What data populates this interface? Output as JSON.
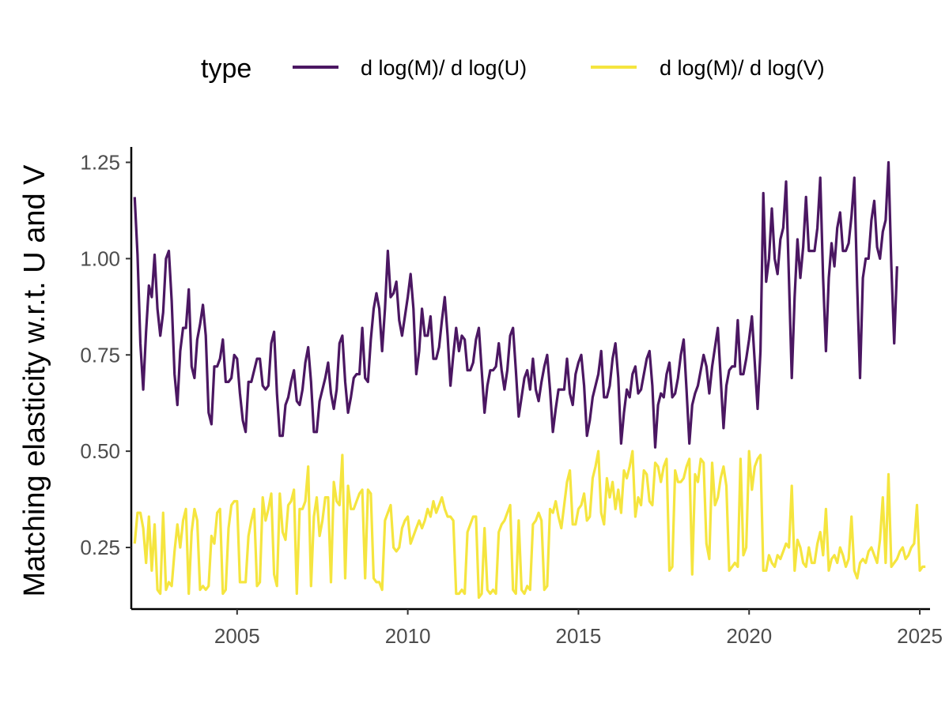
{
  "chart_data": {
    "type": "line",
    "title": "",
    "xlabel": "",
    "ylabel": "Matching elasticity w.r.t. U and V",
    "xlim": [
      2001.9,
      2025.3
    ],
    "ylim": [
      0.09,
      1.29
    ],
    "x_ticks": [
      2005,
      2010,
      2015,
      2020,
      2025
    ],
    "x_tick_labels": [
      "2005",
      "2010",
      "2015",
      "2020",
      "2025"
    ],
    "y_ticks": [
      0.25,
      0.5,
      0.75,
      1.0,
      1.25
    ],
    "y_tick_labels": [
      "0.25",
      "0.50",
      "0.75",
      "1.00",
      "1.25"
    ],
    "grid": false,
    "legend": {
      "title": "type",
      "position": "top",
      "entries": [
        "d log(M)/ d log(U)",
        "d log(M)/ d log(V)"
      ]
    },
    "x_start": 2002.0,
    "x_step": 0.0833333,
    "series": [
      {
        "name": "d log(M)/ d log(U)",
        "color": "#4b1762",
        "values": [
          1.16,
          1.01,
          0.78,
          0.66,
          0.81,
          0.93,
          0.9,
          1.01,
          0.87,
          0.8,
          0.86,
          1.0,
          1.02,
          0.89,
          0.7,
          0.62,
          0.76,
          0.82,
          0.82,
          0.92,
          0.72,
          0.69,
          0.79,
          0.83,
          0.88,
          0.8,
          0.6,
          0.57,
          0.72,
          0.72,
          0.74,
          0.79,
          0.68,
          0.68,
          0.69,
          0.75,
          0.74,
          0.65,
          0.58,
          0.55,
          0.68,
          0.68,
          0.71,
          0.74,
          0.74,
          0.67,
          0.66,
          0.67,
          0.78,
          0.81,
          0.65,
          0.54,
          0.54,
          0.62,
          0.64,
          0.68,
          0.71,
          0.63,
          0.62,
          0.66,
          0.73,
          0.77,
          0.68,
          0.55,
          0.55,
          0.63,
          0.66,
          0.69,
          0.73,
          0.65,
          0.61,
          0.66,
          0.78,
          0.8,
          0.68,
          0.6,
          0.64,
          0.69,
          0.7,
          0.7,
          0.82,
          0.69,
          0.68,
          0.79,
          0.87,
          0.91,
          0.87,
          0.76,
          0.87,
          1.02,
          0.9,
          0.91,
          0.94,
          0.84,
          0.8,
          0.85,
          0.9,
          0.96,
          0.87,
          0.7,
          0.76,
          0.87,
          0.8,
          0.8,
          0.85,
          0.74,
          0.74,
          0.77,
          0.84,
          0.9,
          0.8,
          0.67,
          0.75,
          0.82,
          0.76,
          0.8,
          0.79,
          0.71,
          0.71,
          0.73,
          0.79,
          0.82,
          0.71,
          0.6,
          0.67,
          0.71,
          0.71,
          0.72,
          0.78,
          0.71,
          0.66,
          0.71,
          0.8,
          0.82,
          0.71,
          0.59,
          0.64,
          0.69,
          0.71,
          0.66,
          0.74,
          0.66,
          0.63,
          0.68,
          0.72,
          0.75,
          0.66,
          0.55,
          0.61,
          0.66,
          0.66,
          0.66,
          0.74,
          0.65,
          0.62,
          0.7,
          0.73,
          0.75,
          0.67,
          0.54,
          0.58,
          0.64,
          0.67,
          0.7,
          0.76,
          0.64,
          0.64,
          0.67,
          0.74,
          0.78,
          0.69,
          0.52,
          0.6,
          0.66,
          0.64,
          0.7,
          0.72,
          0.65,
          0.66,
          0.7,
          0.74,
          0.76,
          0.67,
          0.51,
          0.62,
          0.65,
          0.64,
          0.7,
          0.73,
          0.64,
          0.65,
          0.69,
          0.75,
          0.79,
          0.66,
          0.52,
          0.62,
          0.65,
          0.67,
          0.71,
          0.75,
          0.72,
          0.65,
          0.72,
          0.77,
          0.82,
          0.69,
          0.56,
          0.67,
          0.71,
          0.72,
          0.72,
          0.84,
          0.7,
          0.7,
          0.74,
          0.79,
          0.85,
          0.73,
          0.61,
          0.76,
          1.17,
          0.94,
          1.0,
          1.13,
          1.0,
          0.96,
          1.05,
          1.08,
          1.2,
          0.95,
          0.69,
          0.9,
          1.05,
          0.95,
          1.03,
          1.16,
          1.02,
          1.02,
          1.02,
          1.08,
          1.21,
          0.95,
          0.76,
          0.95,
          1.04,
          0.98,
          1.08,
          1.12,
          1.02,
          1.02,
          1.04,
          1.11,
          1.21,
          0.93,
          0.69,
          0.95,
          1.0,
          1.0,
          1.1,
          1.15,
          1.03,
          1.0,
          1.07,
          1.1,
          1.25,
          0.98,
          0.78,
          0.98
        ]
      },
      {
        "name": "d log(M)/ d log(V)",
        "color": "#f5e53f",
        "values": [
          0.26,
          0.34,
          0.34,
          0.3,
          0.21,
          0.33,
          0.19,
          0.31,
          0.14,
          0.13,
          0.34,
          0.14,
          0.16,
          0.15,
          0.24,
          0.31,
          0.25,
          0.32,
          0.35,
          0.13,
          0.29,
          0.35,
          0.32,
          0.14,
          0.15,
          0.14,
          0.15,
          0.28,
          0.26,
          0.34,
          0.35,
          0.13,
          0.14,
          0.3,
          0.36,
          0.37,
          0.37,
          0.16,
          0.16,
          0.16,
          0.28,
          0.32,
          0.35,
          0.15,
          0.16,
          0.38,
          0.32,
          0.35,
          0.39,
          0.18,
          0.15,
          0.39,
          0.29,
          0.27,
          0.36,
          0.37,
          0.4,
          0.13,
          0.35,
          0.35,
          0.37,
          0.46,
          0.15,
          0.33,
          0.38,
          0.28,
          0.32,
          0.38,
          0.38,
          0.16,
          0.42,
          0.37,
          0.36,
          0.49,
          0.17,
          0.41,
          0.35,
          0.35,
          0.37,
          0.39,
          0.4,
          0.17,
          0.4,
          0.39,
          0.17,
          0.16,
          0.16,
          0.14,
          0.32,
          0.34,
          0.36,
          0.25,
          0.24,
          0.25,
          0.3,
          0.32,
          0.33,
          0.26,
          0.28,
          0.3,
          0.32,
          0.3,
          0.32,
          0.35,
          0.33,
          0.37,
          0.34,
          0.36,
          0.38,
          0.35,
          0.33,
          0.33,
          0.32,
          0.13,
          0.13,
          0.14,
          0.13,
          0.29,
          0.31,
          0.33,
          0.33,
          0.12,
          0.13,
          0.3,
          0.14,
          0.13,
          0.14,
          0.13,
          0.29,
          0.31,
          0.32,
          0.34,
          0.36,
          0.14,
          0.13,
          0.32,
          0.14,
          0.13,
          0.15,
          0.14,
          0.31,
          0.32,
          0.34,
          0.32,
          0.14,
          0.15,
          0.35,
          0.34,
          0.37,
          0.33,
          0.3,
          0.36,
          0.42,
          0.45,
          0.31,
          0.31,
          0.35,
          0.36,
          0.39,
          0.32,
          0.33,
          0.43,
          0.46,
          0.5,
          0.34,
          0.31,
          0.43,
          0.38,
          0.42,
          0.35,
          0.4,
          0.34,
          0.45,
          0.43,
          0.46,
          0.5,
          0.33,
          0.38,
          0.36,
          0.45,
          0.44,
          0.37,
          0.36,
          0.47,
          0.46,
          0.42,
          0.46,
          0.48,
          0.19,
          0.2,
          0.45,
          0.42,
          0.42,
          0.43,
          0.46,
          0.48,
          0.18,
          0.44,
          0.42,
          0.48,
          0.47,
          0.26,
          0.22,
          0.47,
          0.36,
          0.38,
          0.43,
          0.46,
          0.41,
          0.19,
          0.2,
          0.21,
          0.2,
          0.48,
          0.23,
          0.25,
          0.5,
          0.4,
          0.46,
          0.48,
          0.49,
          0.19,
          0.19,
          0.23,
          0.21,
          0.2,
          0.23,
          0.22,
          0.24,
          0.26,
          0.25,
          0.41,
          0.19,
          0.27,
          0.25,
          0.21,
          0.2,
          0.25,
          0.21,
          0.21,
          0.26,
          0.29,
          0.23,
          0.35,
          0.19,
          0.22,
          0.23,
          0.21,
          0.25,
          0.23,
          0.2,
          0.22,
          0.33,
          0.19,
          0.17,
          0.21,
          0.22,
          0.21,
          0.24,
          0.25,
          0.23,
          0.21,
          0.27,
          0.38,
          0.21,
          0.44,
          0.2,
          0.21,
          0.22,
          0.24,
          0.25,
          0.22,
          0.23,
          0.25,
          0.26,
          0.36,
          0.19,
          0.2,
          0.2
        ]
      }
    ]
  }
}
